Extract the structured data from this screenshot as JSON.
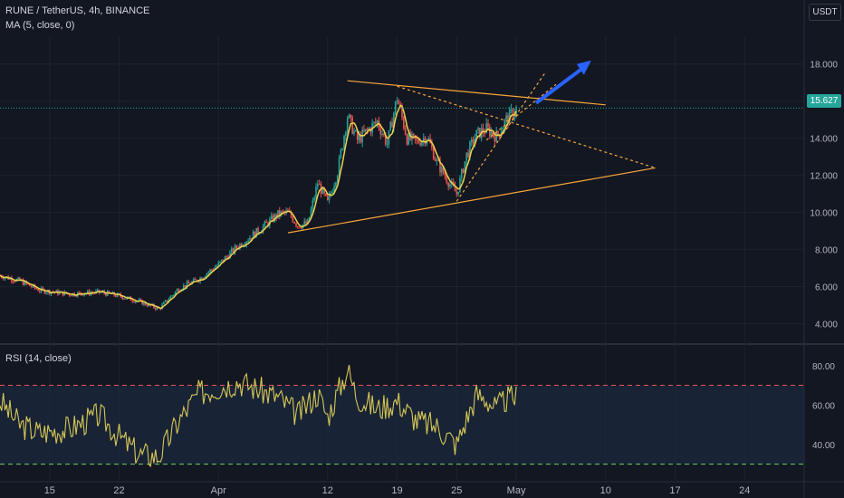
{
  "header": {
    "symbol_title": "RUNE / TetherUS, 4h, BINANCE",
    "ma_label": "MA (5, close, 0)",
    "rsi_label": "RSI (14, close)",
    "currency": "USDT",
    "last_price": "15.627"
  },
  "chart_data": [
    {
      "type": "candlestick",
      "title": "RUNE / TetherUS, 4h, BINANCE",
      "overlay": "MA (5, close, 0)",
      "x_tick_labels": [
        "15",
        "22",
        "Apr",
        "12",
        "19",
        "25",
        "May",
        "10",
        "17",
        "24"
      ],
      "y_tick_labels": [
        "4.000",
        "6.000",
        "8.000",
        "10.000",
        "12.000",
        "14.000",
        "16.000",
        "18.000"
      ],
      "ylim": [
        3.0,
        19.5
      ],
      "price_path": [
        {
          "x": "Mar 10",
          "y": 6.6
        },
        {
          "x": "Mar 12",
          "y": 6.3
        },
        {
          "x": "Mar 14",
          "y": 5.8
        },
        {
          "x": "Mar 17",
          "y": 5.6
        },
        {
          "x": "Mar 20",
          "y": 5.7
        },
        {
          "x": "Mar 22",
          "y": 5.5
        },
        {
          "x": "Mar 24",
          "y": 5.2
        },
        {
          "x": "Mar 26",
          "y": 4.8
        },
        {
          "x": "Mar 28",
          "y": 5.9
        },
        {
          "x": "Mar 30",
          "y": 6.4
        },
        {
          "x": "Apr 1",
          "y": 7.2
        },
        {
          "x": "Apr 3",
          "y": 8.2
        },
        {
          "x": "Apr 5",
          "y": 9.0
        },
        {
          "x": "Apr 7",
          "y": 9.9
        },
        {
          "x": "Apr 8",
          "y": 10.0
        },
        {
          "x": "Apr 9",
          "y": 9.3
        },
        {
          "x": "Apr 10",
          "y": 9.4
        },
        {
          "x": "Apr 11",
          "y": 11.6
        },
        {
          "x": "Apr 12",
          "y": 10.5
        },
        {
          "x": "Apr 13",
          "y": 12.2
        },
        {
          "x": "Apr 14",
          "y": 15.2
        },
        {
          "x": "Apr 15",
          "y": 13.9
        },
        {
          "x": "Apr 17",
          "y": 14.9
        },
        {
          "x": "Apr 18",
          "y": 13.7
        },
        {
          "x": "Apr 19",
          "y": 16.2
        },
        {
          "x": "Apr 20",
          "y": 14.0
        },
        {
          "x": "Apr 21",
          "y": 13.8
        },
        {
          "x": "Apr 22",
          "y": 14.1
        },
        {
          "x": "Apr 23",
          "y": 12.7
        },
        {
          "x": "Apr 24",
          "y": 11.8
        },
        {
          "x": "Apr 25",
          "y": 11.0
        },
        {
          "x": "Apr 26",
          "y": 13.1
        },
        {
          "x": "Apr 27",
          "y": 14.2
        },
        {
          "x": "Apr 28",
          "y": 14.5
        },
        {
          "x": "Apr 29",
          "y": 14.1
        },
        {
          "x": "Apr 30",
          "y": 15.0
        },
        {
          "x": "May 1",
          "y": 15.6
        }
      ],
      "last_price": 15.627,
      "trendlines": "symmetrical triangle with upper and lower trendlines, dashed channel lines and a blue up arrow",
      "grid": true
    },
    {
      "type": "line",
      "title": "RSI (14, close)",
      "y_tick_labels": [
        "40.00",
        "60.00",
        "80.00"
      ],
      "ylim": [
        22,
        90
      ],
      "bands": [
        70,
        30
      ],
      "rsi_path": [
        {
          "x": "Mar 10",
          "y": 62
        },
        {
          "x": "Mar 12",
          "y": 50
        },
        {
          "x": "Mar 14",
          "y": 46
        },
        {
          "x": "Mar 17",
          "y": 48
        },
        {
          "x": "Mar 20",
          "y": 55
        },
        {
          "x": "Mar 22",
          "y": 44
        },
        {
          "x": "Mar 24",
          "y": 35
        },
        {
          "x": "Mar 26",
          "y": 34
        },
        {
          "x": "Mar 28",
          "y": 52
        },
        {
          "x": "Mar 30",
          "y": 66
        },
        {
          "x": "Apr 1",
          "y": 69
        },
        {
          "x": "Apr 3",
          "y": 72
        },
        {
          "x": "Apr 5",
          "y": 68
        },
        {
          "x": "Apr 7",
          "y": 64
        },
        {
          "x": "Apr 9",
          "y": 55
        },
        {
          "x": "Apr 11",
          "y": 66
        },
        {
          "x": "Apr 12",
          "y": 54
        },
        {
          "x": "Apr 13",
          "y": 66
        },
        {
          "x": "Apr 14",
          "y": 78
        },
        {
          "x": "Apr 15",
          "y": 64
        },
        {
          "x": "Apr 17",
          "y": 58
        },
        {
          "x": "Apr 19",
          "y": 62
        },
        {
          "x": "Apr 21",
          "y": 52
        },
        {
          "x": "Apr 23",
          "y": 49
        },
        {
          "x": "Apr 25",
          "y": 40
        },
        {
          "x": "Apr 26",
          "y": 53
        },
        {
          "x": "Apr 27",
          "y": 65
        },
        {
          "x": "Apr 28",
          "y": 63
        },
        {
          "x": "Apr 29",
          "y": 58
        },
        {
          "x": "Apr 30",
          "y": 63
        },
        {
          "x": "May 1",
          "y": 64
        }
      ]
    }
  ],
  "colors": {
    "background": "#131722",
    "up": "#26a69a",
    "down": "#ef5350",
    "ma": "#f0d24b",
    "rsi": "#d6c756",
    "trend": "#f7a63b",
    "arrow": "#2962ff"
  }
}
